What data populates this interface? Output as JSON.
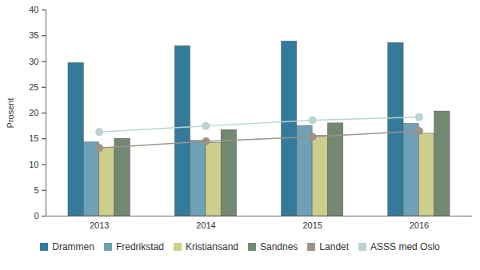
{
  "chart_data": {
    "type": "bar",
    "y_label": "Prosent",
    "categories": [
      "2013",
      "2014",
      "2015",
      "2016"
    ],
    "ylim": [
      0,
      40
    ],
    "yticks": [
      0,
      5,
      10,
      15,
      20,
      25,
      30,
      35,
      40
    ],
    "grid": false,
    "legend": "bottom",
    "series": [
      {
        "name": "Drammen",
        "color": "#347b9b",
        "values": [
          29.7,
          33.0,
          33.9,
          33.6
        ]
      },
      {
        "name": "Fredrikstad",
        "color": "#6fa1b6",
        "values": [
          14.3,
          14.6,
          17.5,
          17.9
        ]
      },
      {
        "name": "Kristiansand",
        "color": "#cccf8c",
        "values": [
          13.3,
          14.2,
          15.6,
          16.0
        ]
      },
      {
        "name": "Sandnes",
        "color": "#738871",
        "values": [
          15.0,
          16.7,
          18.0,
          20.3
        ]
      },
      {
        "name": "Landet",
        "color": "#9e9189",
        "type": "line",
        "marker": "circle",
        "values": [
          13.2,
          14.5,
          15.4,
          16.5
        ]
      },
      {
        "name": "ASSS med Oslo",
        "color": "#b9d3d3",
        "type": "line",
        "marker": "circle",
        "values": [
          16.3,
          17.5,
          18.6,
          19.2
        ]
      }
    ]
  }
}
